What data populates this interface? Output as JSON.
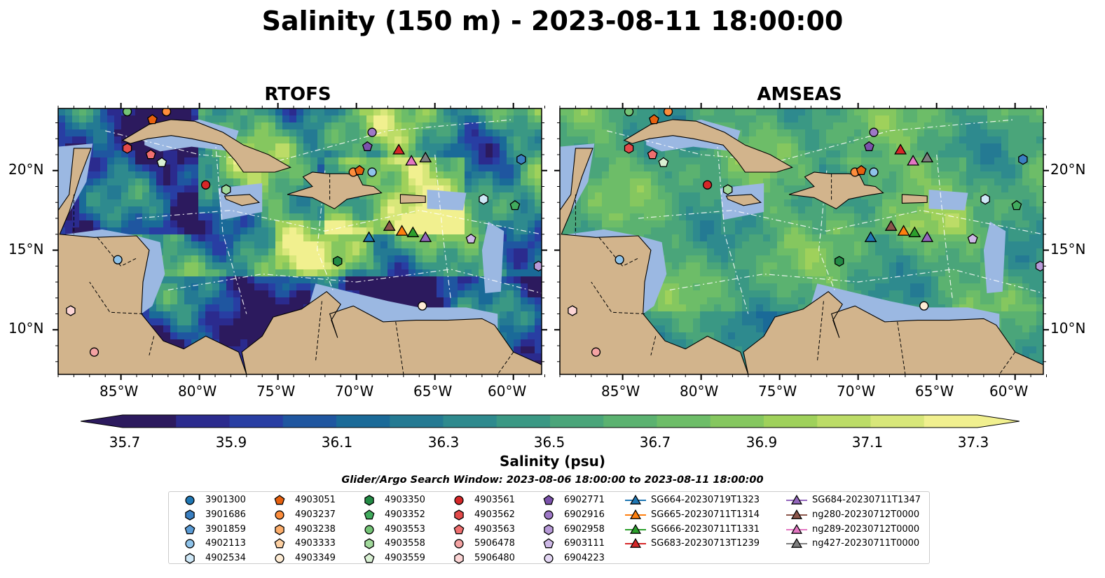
{
  "title": "Salinity (150 m) - 2023-08-11 18:00:00",
  "panels": [
    {
      "title": "RTOFS"
    },
    {
      "title": "AMSEAS"
    }
  ],
  "axes": {
    "lon_ticks": [
      "85°W",
      "80°W",
      "75°W",
      "70°W",
      "65°W",
      "60°W"
    ],
    "lat_ticks": [
      "20°N",
      "15°N",
      "10°N"
    ],
    "lon_range": [
      -89,
      -58.2
    ],
    "lat_range": [
      7.2,
      23.9
    ]
  },
  "colorbar": {
    "label": "Salinity (psu)",
    "ticks": [
      "35.7",
      "35.9",
      "36.1",
      "36.3",
      "36.5",
      "36.7",
      "36.9",
      "37.1",
      "37.3"
    ],
    "range": [
      35.6,
      37.4
    ],
    "colors": [
      "#2c1a5e",
      "#2b2b8e",
      "#283ea3",
      "#1f56a0",
      "#1a6a98",
      "#247a93",
      "#2e8a8e",
      "#3a9884",
      "#4aa57a",
      "#5bb270",
      "#6dbd68",
      "#85c75f",
      "#9fd15b",
      "#bcdc67",
      "#d8e77a",
      "#f1f08f"
    ]
  },
  "search_window": "Glider/Argo Search Window: 2023-08-06 18:00:00 to 2023-08-11 18:00:00",
  "colors": {
    "land": "#d2b48c",
    "shallow": "#9bb8e2",
    "low_sal": "#2c1a5e",
    "high_sal": "#f1f08f"
  },
  "legend": [
    {
      "label": "3901300",
      "marker": "circle",
      "color": "#1f77b4"
    },
    {
      "label": "3901686",
      "marker": "hexagon",
      "color": "#3a7fc1"
    },
    {
      "label": "3901859",
      "marker": "pentagon",
      "color": "#5a9bd5"
    },
    {
      "label": "4902113",
      "marker": "circle",
      "color": "#8fc3ea"
    },
    {
      "label": "4902534",
      "marker": "hexagon",
      "color": "#cfe8f7"
    },
    {
      "label": "4903051",
      "marker": "pentagon",
      "color": "#e6600e"
    },
    {
      "label": "4903237",
      "marker": "circle",
      "color": "#fd8d3c"
    },
    {
      "label": "4903238",
      "marker": "hexagon",
      "color": "#fdae6b"
    },
    {
      "label": "4903333",
      "marker": "pentagon",
      "color": "#fdd0a2"
    },
    {
      "label": "4903349",
      "marker": "circle",
      "color": "#feecd4"
    },
    {
      "label": "4903350",
      "marker": "hexagon",
      "color": "#238b45"
    },
    {
      "label": "4903352",
      "marker": "pentagon",
      "color": "#41ab5d"
    },
    {
      "label": "4903553",
      "marker": "circle",
      "color": "#74c476"
    },
    {
      "label": "4903558",
      "marker": "hexagon",
      "color": "#a1d99b"
    },
    {
      "label": "4903559",
      "marker": "pentagon",
      "color": "#d9f0d3"
    },
    {
      "label": "4903561",
      "marker": "circle",
      "color": "#d62728"
    },
    {
      "label": "4903562",
      "marker": "hexagon",
      "color": "#e34a4a"
    },
    {
      "label": "4903563",
      "marker": "pentagon",
      "color": "#ef6f6f"
    },
    {
      "label": "5906478",
      "marker": "circle",
      "color": "#f4a3a3"
    },
    {
      "label": "5906480",
      "marker": "hexagon",
      "color": "#fcd5d5"
    },
    {
      "label": "6902771",
      "marker": "pentagon",
      "color": "#7b52ab"
    },
    {
      "label": "6902916",
      "marker": "circle",
      "color": "#9e78c7"
    },
    {
      "label": "6902958",
      "marker": "hexagon",
      "color": "#b79ad8"
    },
    {
      "label": "6903111",
      "marker": "pentagon",
      "color": "#cdb8e6"
    },
    {
      "label": "6904223",
      "marker": "circle",
      "color": "#e3d6f3"
    },
    {
      "label": "SG664-20230719T1323",
      "marker": "triangle",
      "color": "#1f77b4"
    },
    {
      "label": "SG665-20230711T1314",
      "marker": "triangle",
      "color": "#ff7f0e"
    },
    {
      "label": "SG666-20230711T1331",
      "marker": "triangle",
      "color": "#2ca02c"
    },
    {
      "label": "SG683-20230713T1239",
      "marker": "triangle",
      "color": "#d62728"
    },
    {
      "label": "SG684-20230711T1347",
      "marker": "triangle",
      "color": "#9467bd"
    },
    {
      "label": "ng280-20230712T0000",
      "marker": "triangle",
      "color": "#8c564b"
    },
    {
      "label": "ng289-20230712T0000",
      "marker": "triangle",
      "color": "#e377c2"
    },
    {
      "label": "ng427-20230711T0000",
      "marker": "triangle",
      "color": "#7f7f7f"
    }
  ],
  "stations": [
    {
      "id": "3901686",
      "lon": -59.5,
      "lat": 20.7
    },
    {
      "id": "4903553",
      "lon": -84.6,
      "lat": 23.7
    },
    {
      "id": "4903051",
      "lon": -83.0,
      "lat": 23.2
    },
    {
      "id": "4903237",
      "lon": -82.1,
      "lat": 23.7
    },
    {
      "id": "4903562",
      "lon": -84.6,
      "lat": 21.4
    },
    {
      "id": "4903563",
      "lon": -83.1,
      "lat": 21.0
    },
    {
      "id": "4903559",
      "lon": -82.4,
      "lat": 20.5
    },
    {
      "id": "4903561",
      "lon": -79.6,
      "lat": 19.1
    },
    {
      "id": "4903558",
      "lon": -78.3,
      "lat": 18.8
    },
    {
      "id": "6902916",
      "lon": -69.0,
      "lat": 22.4
    },
    {
      "id": "6902771",
      "lon": -69.3,
      "lat": 21.5
    },
    {
      "id": "4903237",
      "lon": -70.2,
      "lat": 19.9
    },
    {
      "id": "4903051",
      "lon": -69.8,
      "lat": 20.0
    },
    {
      "id": "4902113",
      "lon": -69.0,
      "lat": 19.9
    },
    {
      "id": "4903352",
      "lon": -59.9,
      "lat": 17.8
    },
    {
      "id": "4902534",
      "lon": -61.9,
      "lat": 18.2
    },
    {
      "id": "6903111",
      "lon": -62.7,
      "lat": 15.7
    },
    {
      "id": "4903350",
      "lon": -71.2,
      "lat": 14.3
    },
    {
      "id": "4902113",
      "lon": -85.2,
      "lat": 14.4
    },
    {
      "id": "6902958",
      "lon": -58.4,
      "lat": 14.0
    },
    {
      "id": "4903349",
      "lon": -65.8,
      "lat": 11.5
    },
    {
      "id": "5906480",
      "lon": -88.2,
      "lat": 11.2
    },
    {
      "id": "5906478",
      "lon": -86.7,
      "lat": 8.6
    }
  ],
  "gliders": [
    {
      "id": "SG683-20230713T1239",
      "lon": -67.3,
      "lat": 21.3
    },
    {
      "id": "ng289-20230712T0000",
      "lon": -66.5,
      "lat": 20.6
    },
    {
      "id": "ng427-20230711T0000",
      "lon": -65.6,
      "lat": 20.8
    },
    {
      "id": "SG664-20230719T1323",
      "lon": -69.2,
      "lat": 15.8
    },
    {
      "id": "ng280-20230712T0000",
      "lon": -67.9,
      "lat": 16.5
    },
    {
      "id": "SG665-20230711T1314",
      "lon": -67.1,
      "lat": 16.2
    },
    {
      "id": "SG666-20230711T1331",
      "lon": -66.4,
      "lat": 16.1
    },
    {
      "id": "SG684-20230711T1347",
      "lon": -65.6,
      "lat": 15.8
    }
  ]
}
